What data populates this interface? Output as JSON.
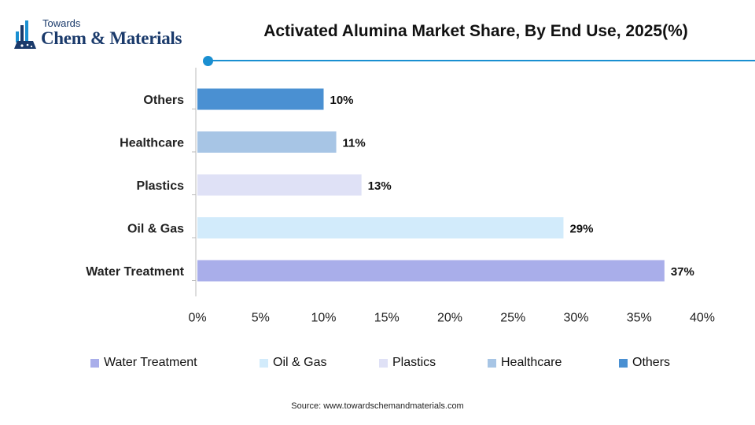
{
  "brand": {
    "line1": "Towards",
    "line2": "Chem & Materials"
  },
  "colors": {
    "accent": "#1a8fd1",
    "axis": "#bbbbbb",
    "brand": "#1a3a6b"
  },
  "chart_data": {
    "type": "bar",
    "orientation": "horizontal",
    "title": "Activated Alumina Market Share, By End Use, 2025(%)",
    "categories": [
      "Others",
      "Healthcare",
      "Plastics",
      "Oil & Gas",
      "Water Treatment"
    ],
    "values": [
      10,
      11,
      13,
      29,
      37
    ],
    "value_labels": [
      "10%",
      "11%",
      "13%",
      "29%",
      "37%"
    ],
    "bar_colors": [
      "#4a90d2",
      "#a7c5e5",
      "#dfe1f6",
      "#d2ebfb",
      "#a9aeea"
    ],
    "xlim": [
      0,
      40
    ],
    "xticks": [
      "0%",
      "5%",
      "10%",
      "15%",
      "20%",
      "25%",
      "30%",
      "35%",
      "40%"
    ],
    "grid": false,
    "legend": {
      "position": "bottom",
      "entries": [
        {
          "label": "Water Treatment",
          "color": "#a9aeea"
        },
        {
          "label": "Oil & Gas",
          "color": "#d2ebfb"
        },
        {
          "label": "Plastics",
          "color": "#dfe1f6"
        },
        {
          "label": "Healthcare",
          "color": "#a7c5e5"
        },
        {
          "label": "Others",
          "color": "#4a90d2"
        }
      ]
    }
  },
  "source": "Source: www.towardschemandmaterials.com"
}
